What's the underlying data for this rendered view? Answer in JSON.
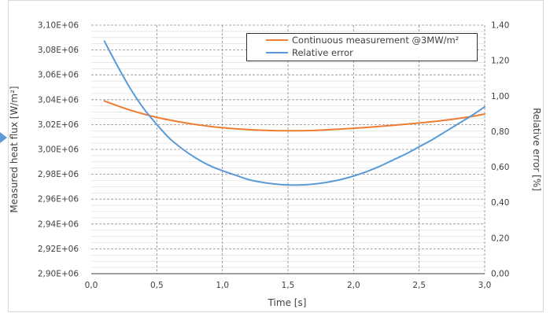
{
  "chart_data": {
    "type": "line",
    "title": "",
    "xlabel": "Time [s]",
    "ylabel": "Measured heat flux [W/m²]",
    "y2label": "Relative error [%]",
    "xlim": [
      0,
      3.0
    ],
    "ylim": [
      2900000,
      3100000
    ],
    "y2lim": [
      0,
      1.4
    ],
    "x_ticks": [
      "0,0",
      "0,5",
      "1,0",
      "1,5",
      "2,0",
      "2,5",
      "3,0"
    ],
    "y_ticks": [
      "2,90E+06",
      "2,92E+06",
      "2,94E+06",
      "2,96E+06",
      "2,98E+06",
      "3,00E+06",
      "3,02E+06",
      "3,04E+06",
      "3,06E+06",
      "3,08E+06",
      "3,10E+06"
    ],
    "y2_ticks": [
      "0,00",
      "0,20",
      "0,40",
      "0,60",
      "0,80",
      "1,00",
      "1,20",
      "1,40"
    ],
    "grid": true,
    "legend_position": "top-right",
    "series": [
      {
        "name": "Continuous measurement @3MW/m²",
        "color": "#ED7D31",
        "axis": "left",
        "x": [
          0.1,
          0.3,
          0.5,
          0.7,
          0.9,
          1.1,
          1.3,
          1.5,
          1.7,
          1.9,
          2.1,
          2.3,
          2.5,
          2.7,
          2.9,
          3.0
        ],
        "y": [
          3039000,
          3031500,
          3025800,
          3021700,
          3018600,
          3016600,
          3015400,
          3015000,
          3015300,
          3016400,
          3017700,
          3019400,
          3021300,
          3023500,
          3026500,
          3028500
        ]
      },
      {
        "name": "Relative error",
        "color": "#5B9BD5",
        "axis": "right",
        "x": [
          0.1,
          0.2,
          0.3,
          0.4,
          0.5,
          0.6,
          0.7,
          0.8,
          0.9,
          1.0,
          1.1,
          1.2,
          1.3,
          1.4,
          1.5,
          1.6,
          1.7,
          1.8,
          1.9,
          2.0,
          2.1,
          2.2,
          2.3,
          2.4,
          2.5,
          2.6,
          2.7,
          2.8,
          2.9,
          3.0
        ],
        "y": [
          1.31,
          1.17,
          1.04,
          0.93,
          0.84,
          0.76,
          0.7,
          0.65,
          0.61,
          0.58,
          0.555,
          0.53,
          0.515,
          0.505,
          0.5,
          0.5,
          0.505,
          0.515,
          0.53,
          0.55,
          0.575,
          0.605,
          0.64,
          0.675,
          0.715,
          0.755,
          0.8,
          0.845,
          0.89,
          0.94
        ]
      }
    ]
  }
}
